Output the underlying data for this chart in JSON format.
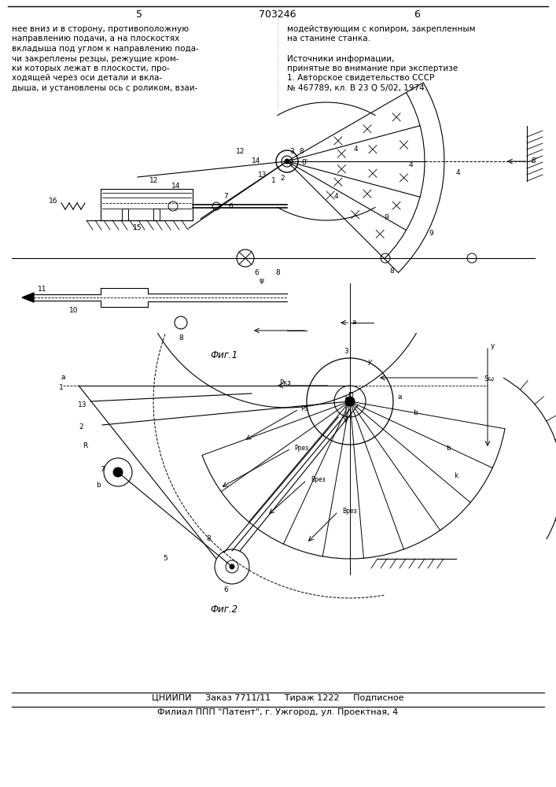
{
  "page_number_left": "5",
  "patent_number": "703246",
  "page_number_right": "6",
  "text_left": "нее вниз и в сторону, противоположную\nнаправлению подачи, а на плоскостях\nвкладыша под углом к направлению пода-\nчи закреплены резцы, режущие кром-\nки которых лежат в плоскости, про-\nходящей через оси детали и вкла-\nдыша, и установлены ось с роликом, взаи-",
  "text_right": "модействующим с копиром, закрепленным\nна станине станка.\n\nИсточники информации,\nпринятые во внимание при экспертизе\n1. Авторское свидетельство СССР\n№ 467789, кл. В 23 Q 5/02, 1974.",
  "fig1_label": "Фиг.1",
  "fig2_label": "Фиг.2",
  "footer_line1": "ЦНИИПИ     Заказ 7711/11     Тираж 1222     Подписное",
  "footer_line2": "Филиал ППП \"Патент\", г. Ужгород, ул. Проектная, 4",
  "bg_color": "#ffffff",
  "line_color": "#000000"
}
